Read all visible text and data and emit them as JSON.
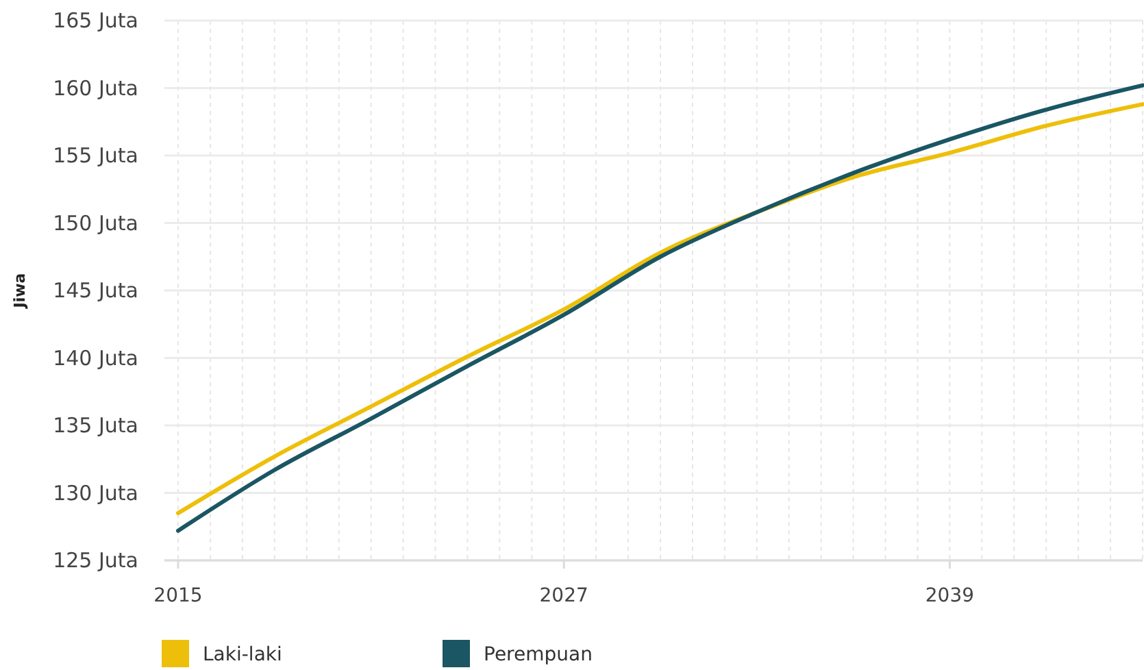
{
  "chart_data": {
    "type": "line",
    "ylabel": "Jiwa",
    "x": [
      2015,
      2018,
      2021,
      2024,
      2027,
      2030,
      2033,
      2036,
      2039,
      2042,
      2045
    ],
    "series": [
      {
        "name": "Laki-laki",
        "color": "#eebf0a",
        "values": [
          128.5,
          132.7,
          136.4,
          140.1,
          143.6,
          147.8,
          150.8,
          153.4,
          155.2,
          157.2,
          158.8
        ]
      },
      {
        "name": "Perempuan",
        "color": "#1a5663",
        "values": [
          127.2,
          131.7,
          135.5,
          139.4,
          143.2,
          147.5,
          150.8,
          153.7,
          156.2,
          158.4,
          160.2
        ]
      }
    ],
    "xlim": [
      2015,
      2045
    ],
    "xticks": [
      2015,
      {
        "value": 2016,
        "label": null
      },
      {
        "value": 2017,
        "label": null
      },
      {
        "value": 2018,
        "label": null
      },
      {
        "value": 2019,
        "label": null
      },
      {
        "value": 2020,
        "label": null
      },
      {
        "value": 2021,
        "label": null
      },
      {
        "value": 2022,
        "label": null
      },
      {
        "value": 2023,
        "label": null
      },
      {
        "value": 2024,
        "label": null
      },
      {
        "value": 2025,
        "label": null
      },
      {
        "value": 2026,
        "label": null
      },
      2027,
      {
        "value": 2028,
        "label": null
      },
      {
        "value": 2029,
        "label": null
      },
      {
        "value": 2030,
        "label": null
      },
      {
        "value": 2031,
        "label": null
      },
      {
        "value": 2032,
        "label": null
      },
      {
        "value": 2033,
        "label": null
      },
      {
        "value": 2034,
        "label": null
      },
      {
        "value": 2035,
        "label": null
      },
      {
        "value": 2036,
        "label": null
      },
      {
        "value": 2037,
        "label": null
      },
      {
        "value": 2038,
        "label": null
      },
      2039,
      {
        "value": 2040,
        "label": null
      },
      {
        "value": 2041,
        "label": null
      },
      {
        "value": 2042,
        "label": null
      },
      {
        "value": 2043,
        "label": null
      },
      {
        "value": 2044,
        "label": null
      },
      {
        "value": 2045,
        "label": null
      }
    ],
    "ylim": [
      125,
      165
    ],
    "yticks": [
      {
        "value": 125,
        "label": "125 Juta"
      },
      {
        "value": 130,
        "label": "130 Juta"
      },
      {
        "value": 135,
        "label": "135 Juta"
      },
      {
        "value": 140,
        "label": "140 Juta"
      },
      {
        "value": 145,
        "label": "145 Juta"
      },
      {
        "value": 150,
        "label": "150 Juta"
      },
      {
        "value": 155,
        "label": "155 Juta"
      },
      {
        "value": 160,
        "label": "160 Juta"
      },
      {
        "value": 165,
        "label": "165 Juta"
      }
    ],
    "grid": true,
    "legend": "bottom left",
    "marker": "none",
    "line_style": "solid"
  }
}
